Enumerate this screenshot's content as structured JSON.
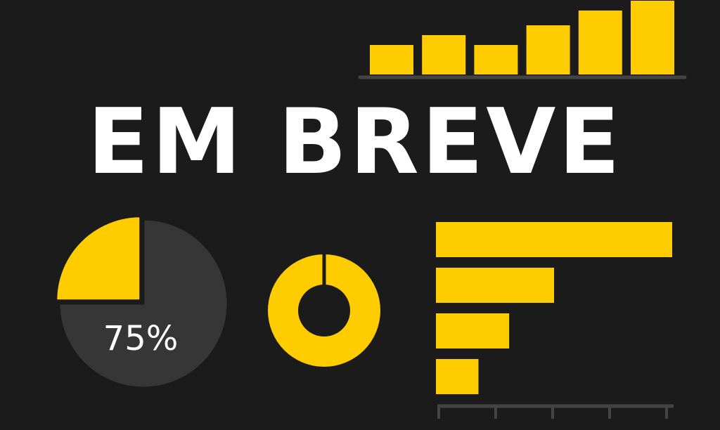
{
  "headline": "EM BREVE",
  "colors": {
    "background": "#1b1b1b",
    "accent": "#ffcc00",
    "muted": "#363636",
    "axis": "#444444",
    "text": "#ffffff"
  },
  "chart_data": [
    {
      "type": "bar",
      "orientation": "vertical",
      "values": [
        3,
        4,
        3,
        5,
        6.5,
        7.5
      ],
      "grid": false
    },
    {
      "type": "pie",
      "values": [
        75,
        25
      ],
      "label": "75%",
      "highlighted_slice": 1
    },
    {
      "type": "pie",
      "style": "donut",
      "values": [
        100
      ]
    },
    {
      "type": "bar",
      "orientation": "horizontal",
      "values": [
        100,
        50,
        31,
        18
      ],
      "grid": false
    }
  ]
}
